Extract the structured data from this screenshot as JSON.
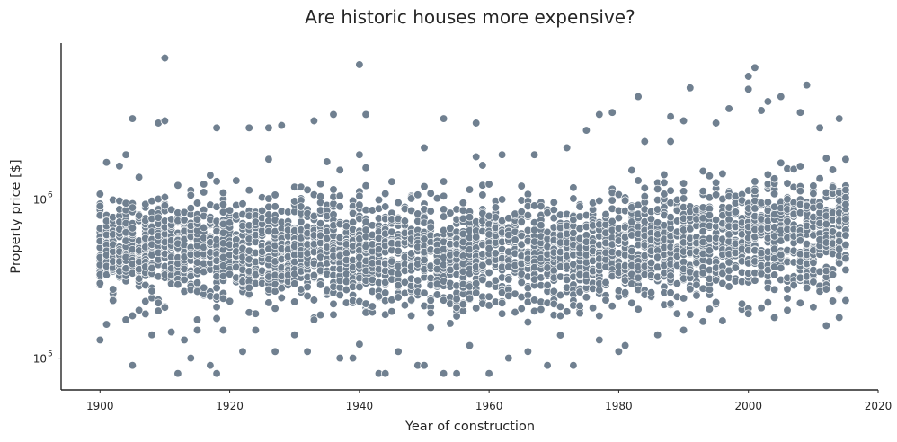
{
  "chart_data": {
    "type": "scatter",
    "title": "Are historic houses more expensive?",
    "xlabel": "Year of construction",
    "ylabel": "Property price [$]",
    "xlim": [
      1894,
      2020
    ],
    "ylim_log10": [
      4.8,
      6.98
    ],
    "yscale": "log",
    "x_ticks": [
      1900,
      1920,
      1940,
      1960,
      1980,
      2000,
      2020
    ],
    "y_ticks": [
      {
        "value": 100000,
        "base": "10",
        "exp": "5"
      },
      {
        "value": 1000000,
        "base": "10",
        "exp": "6"
      }
    ],
    "point_color": "#708090",
    "grid": false,
    "legend": "none",
    "x_range_data": [
      1900,
      2015
    ],
    "series": [
      {
        "points": [
          [
            1910,
            7700000
          ],
          [
            1940,
            7000000
          ],
          [
            2001,
            6700000
          ],
          [
            2000,
            5900000
          ],
          [
            2009,
            5200000
          ],
          [
            1991,
            5000000
          ],
          [
            2000,
            4900000
          ],
          [
            1983,
            4400000
          ],
          [
            2003,
            4100000
          ],
          [
            2005,
            4400000
          ],
          [
            1997,
            3700000
          ],
          [
            2008,
            3500000
          ],
          [
            2002,
            3600000
          ],
          [
            1905,
            3200000
          ],
          [
            1936,
            3400000
          ],
          [
            1941,
            3400000
          ],
          [
            1953,
            3200000
          ],
          [
            1977,
            3400000
          ],
          [
            1979,
            3500000
          ],
          [
            1958,
            3000000
          ],
          [
            1988,
            3300000
          ],
          [
            2014,
            3200000
          ],
          [
            1990,
            3100000
          ],
          [
            1995,
            3000000
          ],
          [
            1909,
            3000000
          ],
          [
            1910,
            3100000
          ],
          [
            1918,
            2800000
          ],
          [
            1923,
            2800000
          ],
          [
            1926,
            2800000
          ],
          [
            1928,
            2900000
          ],
          [
            1933,
            3100000
          ],
          [
            1975,
            2700000
          ],
          [
            1984,
            2300000
          ],
          [
            2011,
            2800000
          ],
          [
            1901,
            1700000
          ],
          [
            1904,
            1900000
          ],
          [
            1940,
            1900000
          ],
          [
            1950,
            2100000
          ],
          [
            1962,
            1900000
          ],
          [
            1967,
            1900000
          ],
          [
            1972,
            2100000
          ],
          [
            1905,
            90000
          ],
          [
            1912,
            80000
          ],
          [
            1914,
            100000
          ],
          [
            1917,
            90000
          ],
          [
            1918,
            80000
          ],
          [
            1922,
            110000
          ],
          [
            1937,
            100000
          ],
          [
            1943,
            80000
          ],
          [
            1944,
            80000
          ],
          [
            1949,
            90000
          ],
          [
            1950,
            90000
          ],
          [
            1953,
            80000
          ],
          [
            1955,
            80000
          ],
          [
            1960,
            80000
          ],
          [
            1969,
            90000
          ],
          [
            1973,
            90000
          ],
          [
            1932,
            110000
          ],
          [
            1927,
            110000
          ],
          [
            1900,
            130000
          ],
          [
            1906,
            200000
          ],
          [
            1908,
            140000
          ],
          [
            1913,
            130000
          ],
          [
            1915,
            150000
          ],
          [
            1924,
            150000
          ],
          [
            1930,
            140000
          ],
          [
            1939,
            100000
          ],
          [
            1946,
            110000
          ],
          [
            1957,
            120000
          ],
          [
            1963,
            100000
          ],
          [
            1966,
            110000
          ],
          [
            1977,
            130000
          ],
          [
            1980,
            110000
          ],
          [
            1981,
            120000
          ],
          [
            1986,
            140000
          ],
          [
            1990,
            150000
          ],
          [
            1993,
            170000
          ],
          [
            2000,
            190000
          ],
          [
            2004,
            180000
          ],
          [
            2006,
            200000
          ],
          [
            2012,
            160000
          ],
          [
            2014,
            180000
          ],
          [
            2015,
            230000
          ]
        ]
      }
    ]
  }
}
